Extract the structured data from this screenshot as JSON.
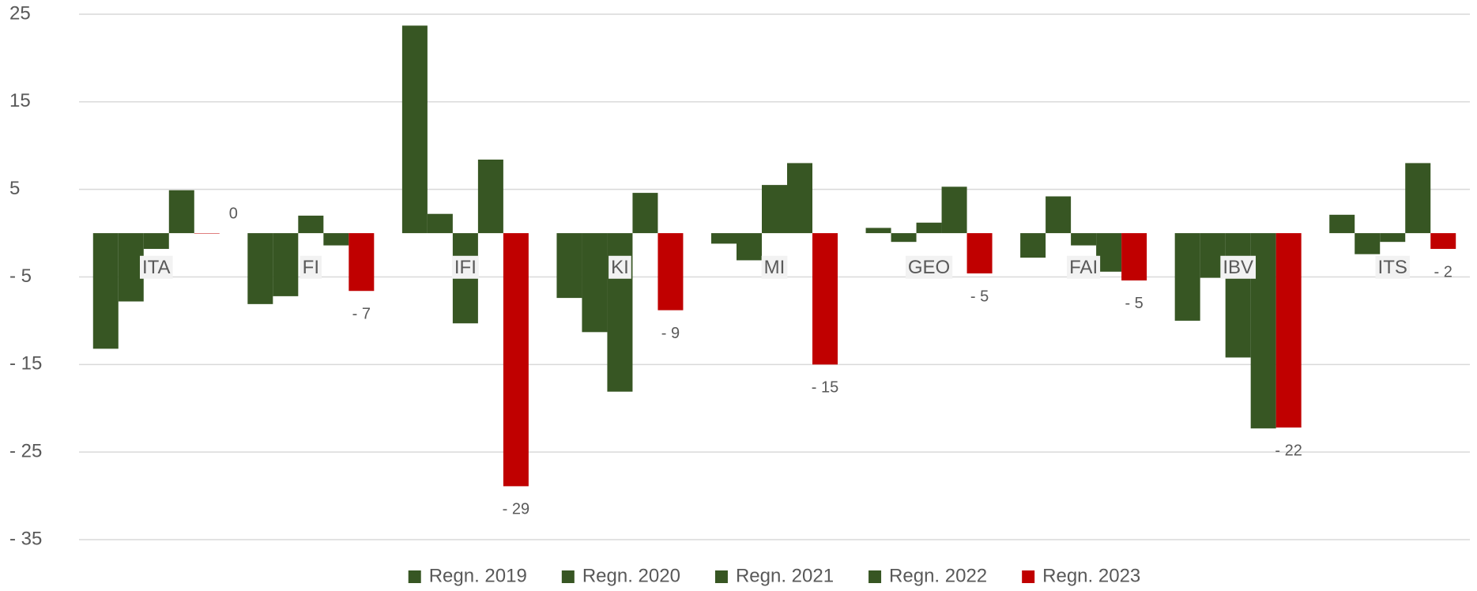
{
  "chart_data": {
    "type": "bar",
    "categories": [
      "ITA",
      "FI",
      "IFI",
      "KI",
      "MI",
      "GEO",
      "FAI",
      "IBV",
      "ITS"
    ],
    "series": [
      {
        "name": "Regn. 2019",
        "color": "#375623",
        "values": [
          -13.2,
          -8.1,
          23.7,
          -7.4,
          -1.2,
          0.6,
          -2.8,
          -10.0,
          2.1
        ]
      },
      {
        "name": "Regn. 2020",
        "color": "#375623",
        "values": [
          -7.8,
          -7.2,
          2.2,
          -11.3,
          -3.1,
          -1.0,
          4.2,
          -5.1,
          -2.4
        ]
      },
      {
        "name": "Regn. 2021",
        "color": "#375623",
        "values": [
          -1.8,
          2.0,
          -10.3,
          -18.1,
          5.5,
          1.2,
          -1.4,
          -14.2,
          -1.0
        ]
      },
      {
        "name": "Regn. 2022",
        "color": "#375623",
        "values": [
          4.9,
          -1.4,
          8.4,
          4.6,
          8.0,
          5.3,
          -4.4,
          -22.3,
          8.0
        ]
      },
      {
        "name": "Regn. 2023",
        "color": "#c00000",
        "values": [
          0,
          -6.6,
          -28.9,
          -8.8,
          -15.0,
          -4.6,
          -5.4,
          -22.2,
          -1.8
        ],
        "value_labels": [
          "0",
          "- 7",
          "- 29",
          "- 9",
          "- 15",
          "- 5",
          "- 5",
          "- 22",
          "- 2"
        ]
      }
    ],
    "ylim": [
      -35,
      25
    ],
    "yticks": [
      25,
      15,
      5,
      {
        "value": -5,
        "label": "- 5"
      },
      {
        "value": -15,
        "label": "- 15"
      },
      {
        "value": -25,
        "label": "- 25"
      },
      {
        "value": -35,
        "label": "- 35"
      }
    ],
    "grid": true,
    "legend": "bottom"
  }
}
